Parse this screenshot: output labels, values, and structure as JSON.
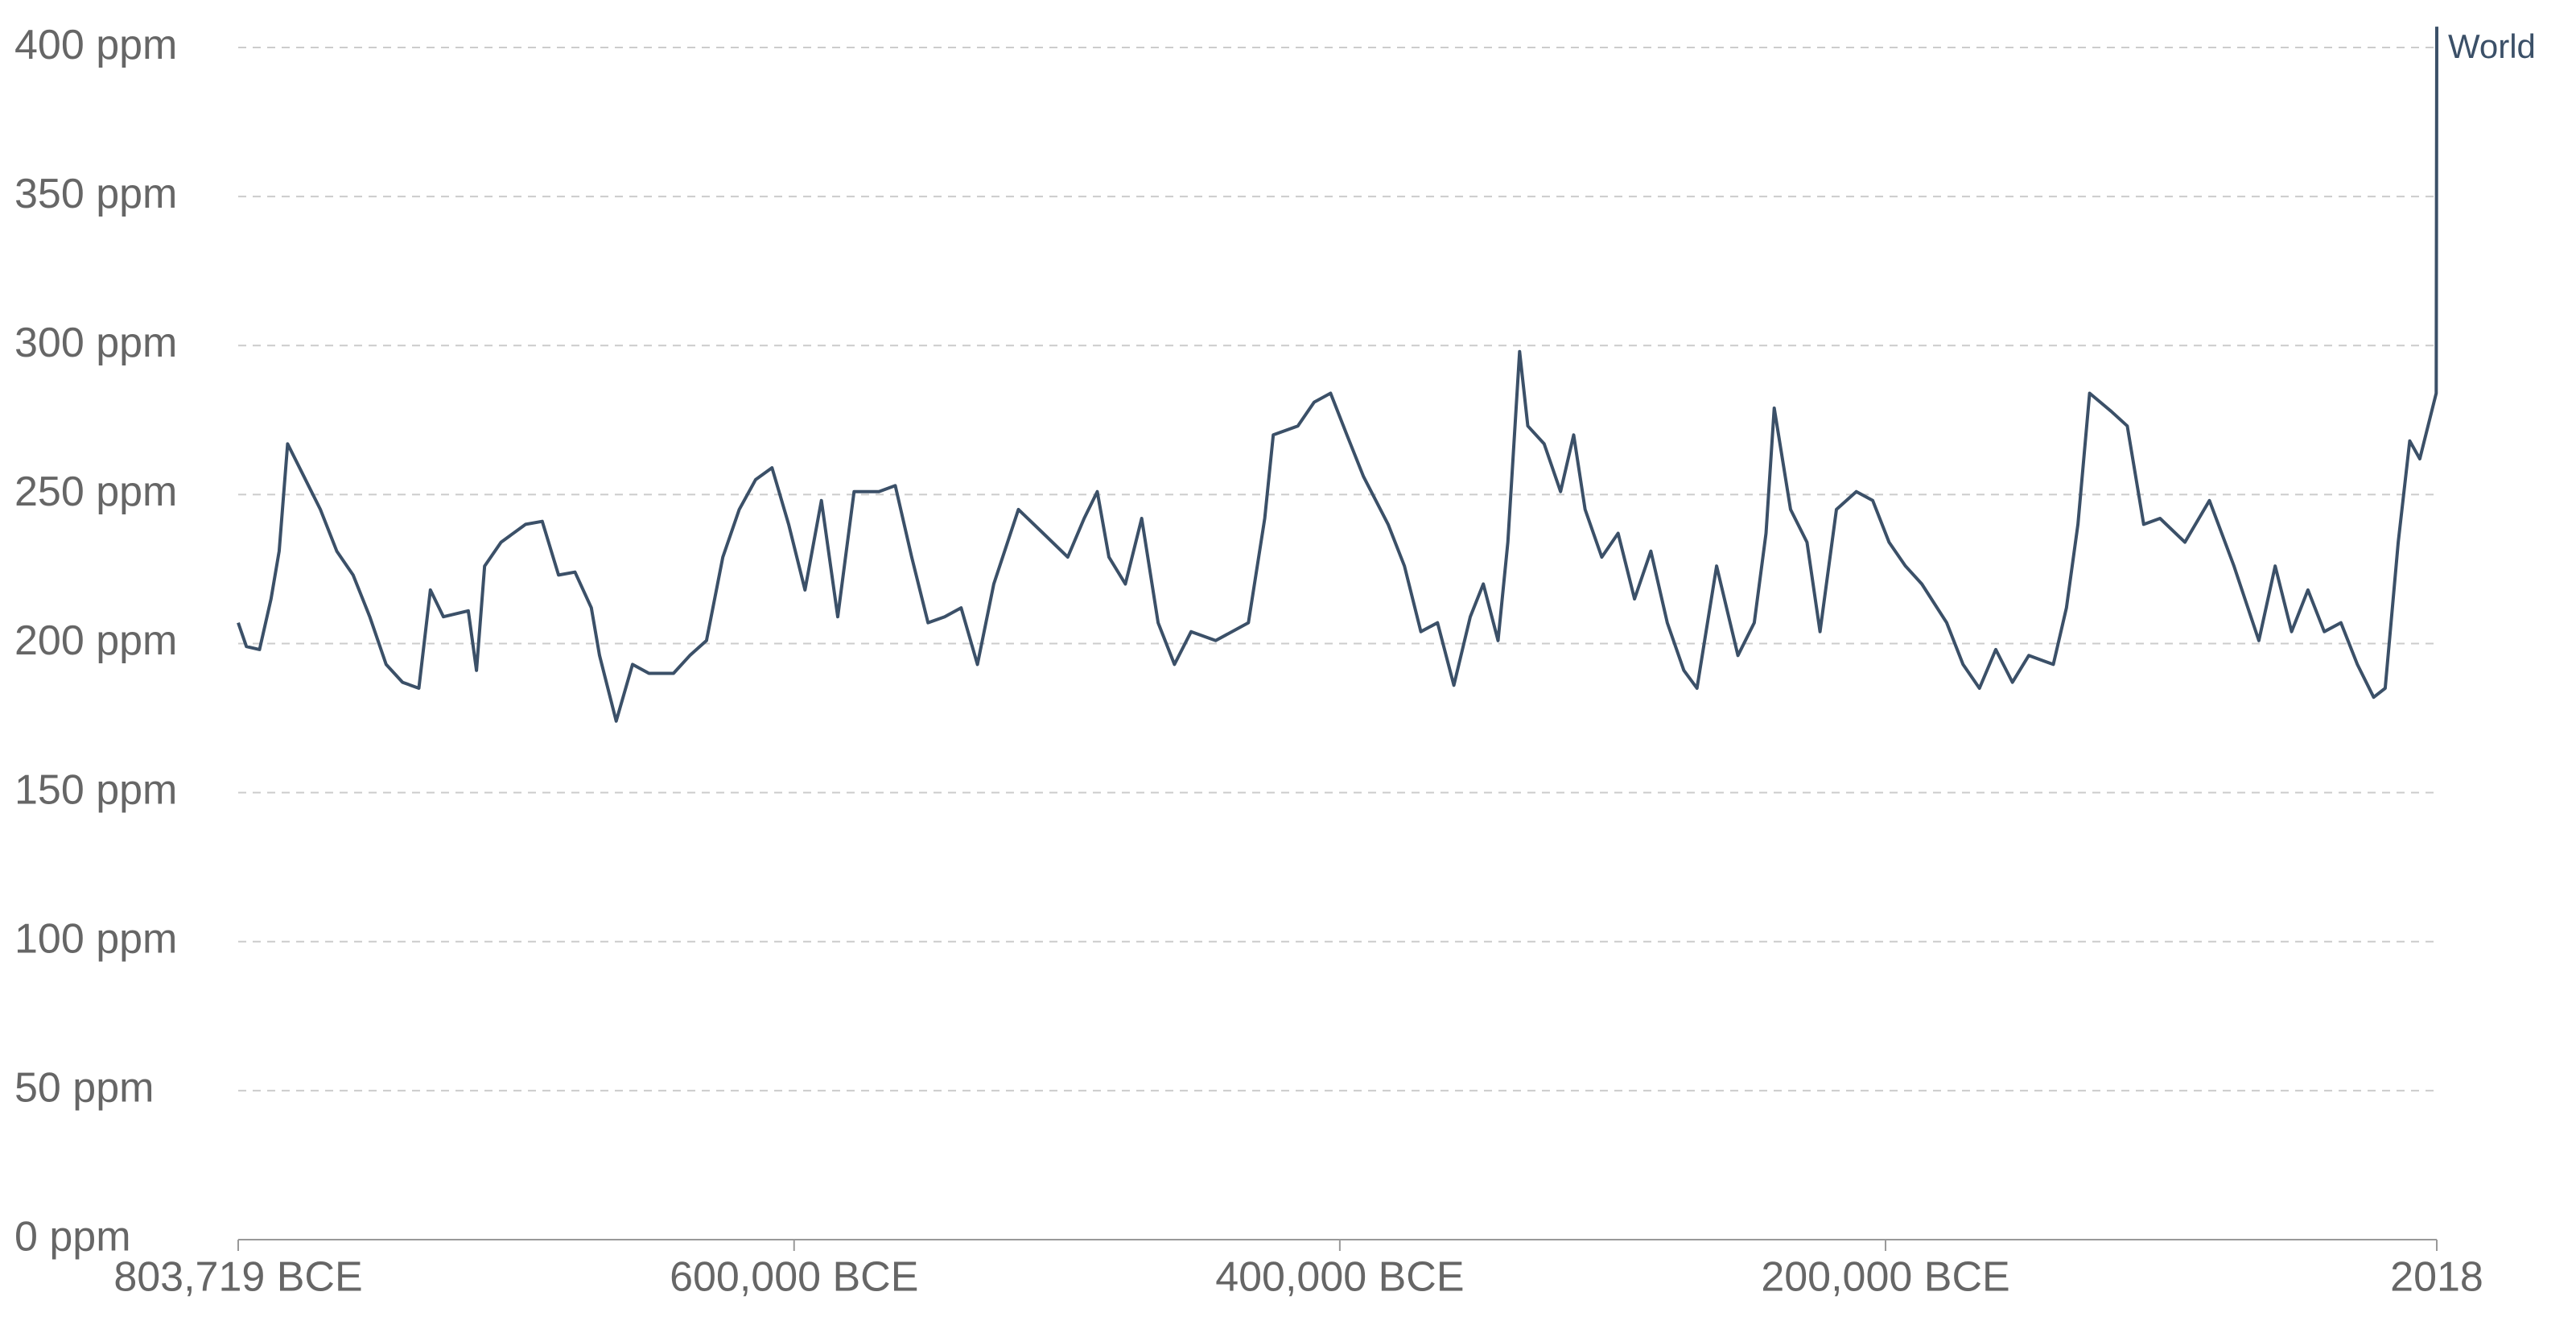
{
  "chart_data": {
    "type": "line",
    "x": [
      -803719,
      -800700,
      -795900,
      -791700,
      -788700,
      -785600,
      -779600,
      -773600,
      -767600,
      -761600,
      -755500,
      -749500,
      -743500,
      -737500,
      -733300,
      -728500,
      -719400,
      -716400,
      -713400,
      -707400,
      -698400,
      -692300,
      -686300,
      -680300,
      -674300,
      -671300,
      -665200,
      -659200,
      -653200,
      -644200,
      -638200,
      -632100,
      -626100,
      -620100,
      -614100,
      -608100,
      -602000,
      -596000,
      -590000,
      -584000,
      -578000,
      -568900,
      -562900,
      -556900,
      -550900,
      -544800,
      -538800,
      -532800,
      -526800,
      -517800,
      -508700,
      -499700,
      -493700,
      -488900,
      -484600,
      -478600,
      -472600,
      -466600,
      -460600,
      -454500,
      -445500,
      -433500,
      -427500,
      -424400,
      -415400,
      -409400,
      -403400,
      -397400,
      -391300,
      -382300,
      -376300,
      -370300,
      -364200,
      -358200,
      -352200,
      -347400,
      -342000,
      -338400,
      -334100,
      -331100,
      -325100,
      -319100,
      -314300,
      -310100,
      -304000,
      -298000,
      -292000,
      -286000,
      -280000,
      -273900,
      -269100,
      -261900,
      -254100,
      -248100,
      -243800,
      -240800,
      -234800,
      -228800,
      -224000,
      -218000,
      -210700,
      -204700,
      -198700,
      -192700,
      -186700,
      -177600,
      -171600,
      -165600,
      -159600,
      -153500,
      -147500,
      -138500,
      -133700,
      -129500,
      -125200,
      -117400,
      -111400,
      -105400,
      -99400,
      -90300,
      -81300,
      -72300,
      -63200,
      -57200,
      -51200,
      -45200,
      -39200,
      -33100,
      -27100,
      -21100,
      -16900,
      -12100,
      -7900,
      -4200,
      1800,
      2018
    ],
    "series": [
      {
        "name": "World",
        "color": "#3b5068",
        "values": [
          207,
          199,
          198,
          215,
          231,
          267,
          256,
          245,
          231,
          223,
          209,
          193,
          187,
          185,
          218,
          209,
          211,
          191,
          226,
          234,
          240,
          241,
          223,
          224,
          212,
          196,
          174,
          193,
          190,
          190,
          196,
          201,
          229,
          245,
          255,
          259,
          240,
          218,
          248,
          209,
          251,
          251,
          253,
          229,
          207,
          209,
          212,
          193,
          220,
          245,
          237,
          229,
          242,
          251,
          229,
          220,
          242,
          207,
          193,
          204,
          201,
          207,
          242,
          270,
          273,
          281,
          284,
          270,
          256,
          240,
          226,
          204,
          207,
          186,
          209,
          220,
          201,
          234,
          298,
          273,
          267,
          251,
          270,
          245,
          229,
          237,
          215,
          231,
          207,
          191,
          185,
          226,
          196,
          207,
          237,
          279,
          245,
          234,
          204,
          245,
          251,
          248,
          234,
          226,
          220,
          207,
          193,
          185,
          198,
          187,
          196,
          193,
          212,
          240,
          284,
          278,
          273,
          240,
          242,
          234,
          248,
          226,
          201,
          226,
          204,
          218,
          204,
          207,
          193,
          182,
          185,
          234,
          268,
          262,
          284,
          407
        ]
      }
    ],
    "xlim": [
      -803719,
      2018
    ],
    "xticks": [
      {
        "value": -803719,
        "label": "803,719 BCE"
      },
      {
        "value": -600000,
        "label": "600,000 BCE"
      },
      {
        "value": -400000,
        "label": "400,000 BCE"
      },
      {
        "value": -200000,
        "label": "200,000 BCE"
      },
      2018
    ],
    "ylim": [
      0,
      410
    ],
    "yticks": [
      {
        "value": 0,
        "label": "0 ppm"
      },
      {
        "value": 50,
        "label": "50 ppm"
      },
      {
        "value": 100,
        "label": "100 ppm"
      },
      {
        "value": 150,
        "label": "150 ppm"
      },
      {
        "value": 200,
        "label": "200 ppm"
      },
      {
        "value": 250,
        "label": "250 ppm"
      },
      {
        "value": 300,
        "label": "300 ppm"
      },
      {
        "value": 350,
        "label": "350 ppm"
      },
      {
        "value": 400,
        "label": "400 ppm"
      }
    ],
    "grid": true
  }
}
